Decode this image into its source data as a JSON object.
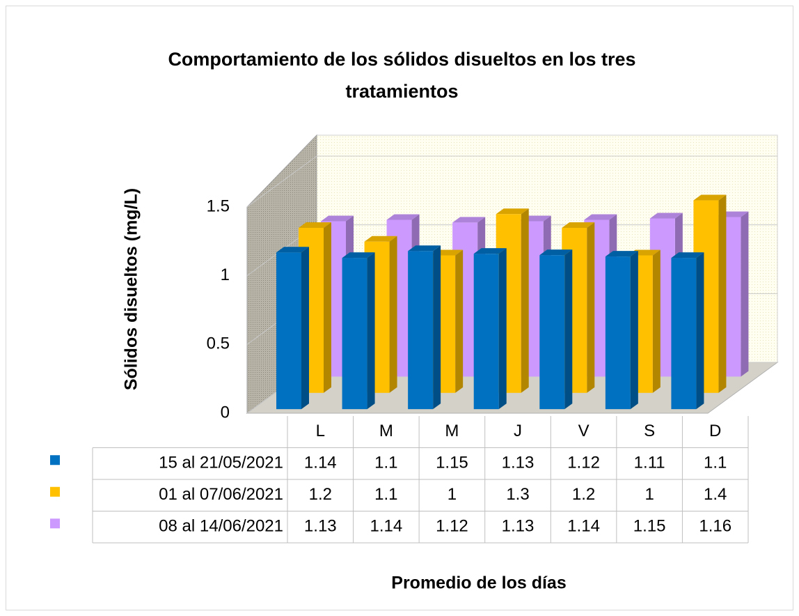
{
  "chart_data": {
    "type": "bar3d",
    "title": "Comportamiento de los sólidos disueltos en los tres tratamientos",
    "ylabel": "Sólidos  disueltos (mg/L)",
    "xlabel": "Promedio de los días",
    "categories": [
      "L",
      "M",
      "M",
      "J",
      "V",
      "S",
      "D"
    ],
    "series": [
      {
        "name": "15 al 21/05/2021",
        "color": "#0070c0",
        "values": [
          1.14,
          1.1,
          1.15,
          1.13,
          1.12,
          1.11,
          1.1
        ]
      },
      {
        "name": "01 al 07/06/2021",
        "color": "#ffc000",
        "values": [
          1.2,
          1.1,
          1,
          1.3,
          1.2,
          1,
          1.4
        ]
      },
      {
        "name": "08 al 14/06/2021",
        "color": "#cc99ff",
        "values": [
          1.13,
          1.14,
          1.12,
          1.13,
          1.14,
          1.15,
          1.16
        ]
      }
    ],
    "ylim": [
      0,
      1.5
    ],
    "yticks": [
      0,
      0.5,
      1,
      1.5
    ],
    "grid": true,
    "data_table": true
  }
}
